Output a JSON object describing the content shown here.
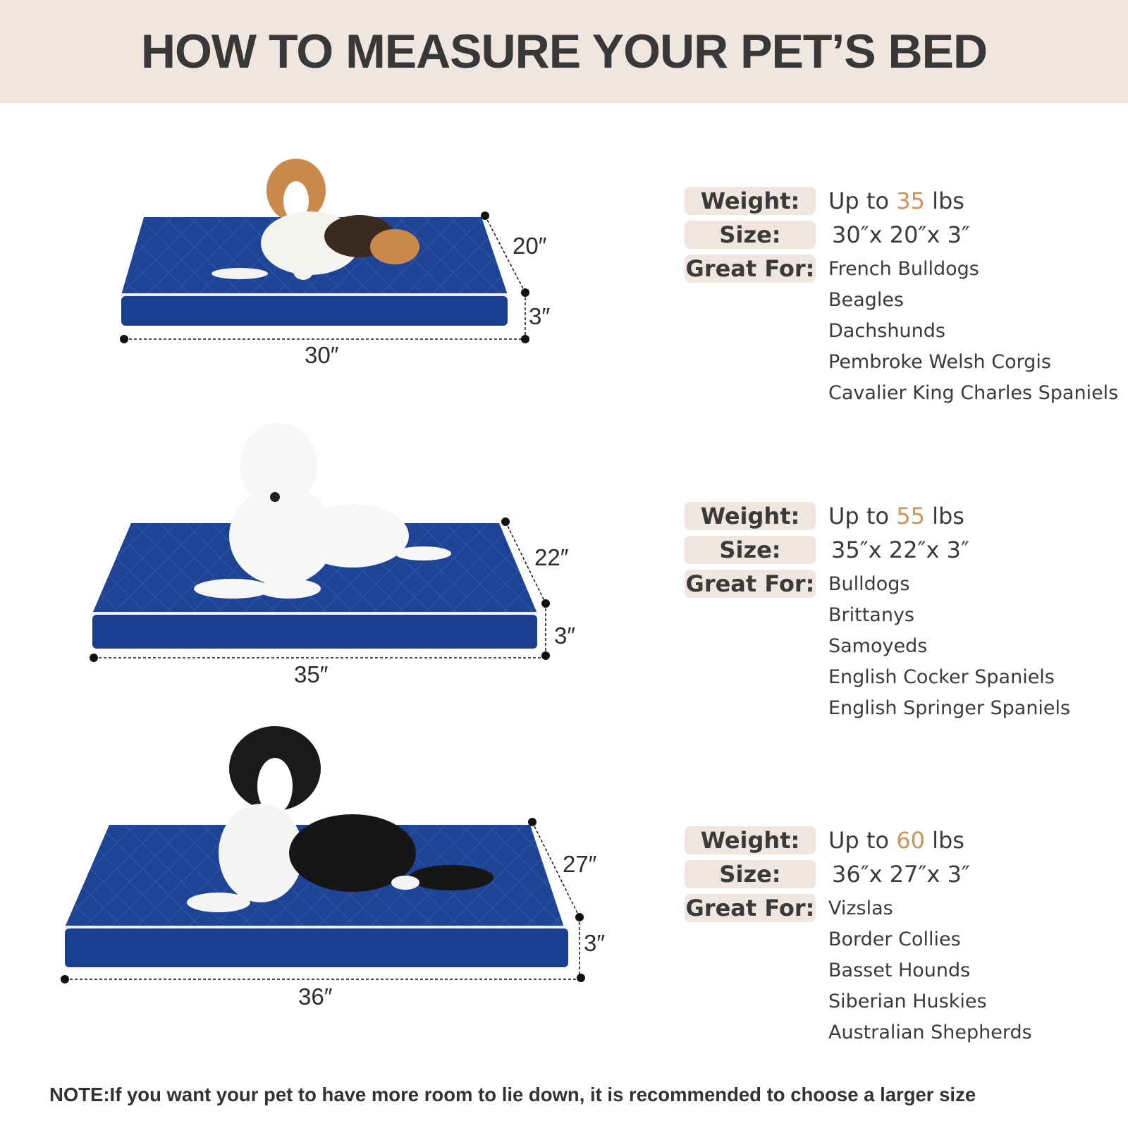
{
  "title": "HOW TO MEASURE YOUR PET’S BED",
  "labels": {
    "weight": "Weight:",
    "size": "Size:",
    "great_for": "Great For:"
  },
  "beds": [
    {
      "dog": "beagle",
      "depth": "20″",
      "height": "3″",
      "width": "30″",
      "weight_prefix": "Up to",
      "weight_num": "35",
      "weight_unit": "lbs",
      "size": "30″x 20″x 3″",
      "breeds": [
        "French Bulldogs",
        "Beagles",
        "Dachshunds",
        "Pembroke Welsh Corgis",
        "Cavalier King Charles Spaniels"
      ]
    },
    {
      "dog": "samoyed",
      "depth": "22″",
      "height": "3″",
      "width": "35″",
      "weight_prefix": "Up to",
      "weight_num": "55",
      "weight_unit": "lbs",
      "size": "35″x 22″x 3″",
      "breeds": [
        "Bulldogs",
        "Brittanys",
        "Samoyeds",
        "English Cocker Spaniels",
        "English Springer Spaniels"
      ]
    },
    {
      "dog": "border-collie",
      "depth": "27″",
      "height": "3″",
      "width": "36″",
      "weight_prefix": "Up to",
      "weight_num": "60",
      "weight_unit": "lbs",
      "size": "36″x 27″x 3″",
      "breeds": [
        "Vizslas",
        "Border Collies",
        "Basset Hounds",
        "Siberian Huskies",
        "Australian Shepherds"
      ]
    }
  ],
  "note": "NOTE:If you want your pet to have more room to lie down, it is recommended to choose a larger size",
  "colors": {
    "header_bg": "#efe6df",
    "accent": "#d09257",
    "bed": "#1d3f8c",
    "text": "#3a3a3a"
  }
}
